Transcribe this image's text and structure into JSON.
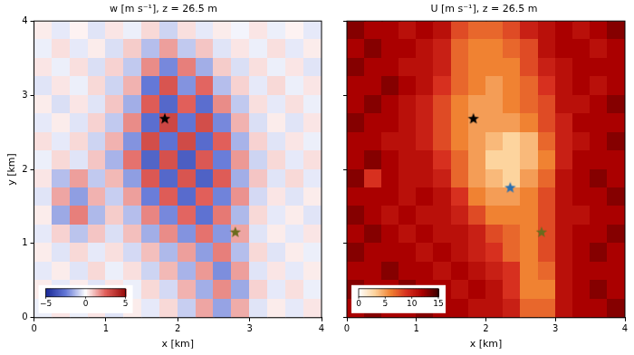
{
  "chart_data": [
    {
      "type": "heatmap",
      "title": "w [m s⁻¹], z = 26.5 m",
      "xlabel": "x [km]",
      "ylabel": "y [km]",
      "xlim": [
        0,
        4
      ],
      "ylim": [
        0,
        4
      ],
      "xticks": [
        0,
        1,
        2,
        3,
        4
      ],
      "yticks": [
        0,
        1,
        2,
        3,
        4
      ],
      "grid": false,
      "colorbar": {
        "range": [
          -5,
          5
        ],
        "ticks": [
          {
            "value": -5,
            "label": "−5"
          },
          0,
          5
        ]
      },
      "cells": [
        [
          0.3,
          -0.4,
          0.2,
          -0.5,
          0.4,
          -0.3,
          0.6,
          -0.8,
          0.5,
          -0.4,
          0.3,
          -0.2,
          0.4,
          -0.3,
          0.2,
          -0.4
        ],
        [
          -0.3,
          0.5,
          -0.4,
          0.3,
          -0.6,
          0.8,
          -1.2,
          1.5,
          -1.0,
          0.9,
          -0.5,
          0.4,
          -0.3,
          0.5,
          -0.4,
          0.3
        ],
        [
          0.4,
          -0.3,
          0.5,
          -0.6,
          0.7,
          -1.0,
          1.8,
          -2.2,
          2.0,
          -1.5,
          0.8,
          -0.6,
          0.5,
          -0.3,
          0.4,
          -0.5
        ],
        [
          -0.5,
          0.4,
          -0.3,
          0.6,
          -0.8,
          1.2,
          -2.5,
          2.8,
          -2.0,
          2.4,
          -1.2,
          0.7,
          -0.4,
          0.6,
          -0.3,
          0.4
        ],
        [
          0.3,
          -0.6,
          0.4,
          -0.5,
          0.9,
          -1.5,
          2.6,
          -3.0,
          2.5,
          -2.8,
          1.8,
          -1.0,
          0.5,
          -0.4,
          0.5,
          -0.3
        ],
        [
          -0.4,
          0.3,
          -0.5,
          0.7,
          -1.0,
          1.8,
          -2.8,
          3.2,
          -2.6,
          3.0,
          -2.2,
          1.2,
          -0.6,
          0.3,
          -0.5,
          0.4
        ],
        [
          0.5,
          -0.4,
          0.6,
          -0.8,
          1.2,
          -2.0,
          3.0,
          -2.7,
          3.1,
          -2.9,
          2.5,
          -1.4,
          0.7,
          -0.5,
          0.4,
          -0.3
        ],
        [
          -0.3,
          0.6,
          -0.5,
          0.9,
          -1.4,
          2.2,
          -3.1,
          2.9,
          -3.3,
          2.7,
          -2.4,
          1.6,
          -0.8,
          0.6,
          -0.4,
          0.5
        ],
        [
          0.4,
          -1.2,
          1.5,
          -1.0,
          1.1,
          -1.8,
          2.7,
          -3.0,
          2.8,
          -3.2,
          2.6,
          -1.5,
          0.9,
          -0.5,
          0.6,
          -0.4
        ],
        [
          -0.5,
          1.4,
          -1.8,
          1.2,
          -0.9,
          1.5,
          -2.4,
          2.6,
          -2.9,
          2.5,
          -2.3,
          1.7,
          -0.7,
          0.4,
          -0.5,
          0.3
        ],
        [
          0.3,
          -1.6,
          2.0,
          -1.3,
          0.8,
          -1.2,
          1.9,
          -2.2,
          2.4,
          -2.7,
          2.1,
          -1.3,
          0.6,
          -0.4,
          0.3,
          -0.5
        ],
        [
          -0.4,
          0.7,
          -1.1,
          0.9,
          -0.6,
          1.0,
          -1.5,
          1.8,
          -2.0,
          2.2,
          -1.9,
          1.4,
          -0.5,
          0.3,
          -0.4,
          0.4
        ],
        [
          0.3,
          -0.5,
          0.6,
          -0.4,
          0.5,
          -0.7,
          1.0,
          -1.3,
          1.5,
          -1.8,
          2.0,
          -1.2,
          0.6,
          -0.5,
          0.3,
          -0.3
        ],
        [
          -0.4,
          0.3,
          -0.5,
          0.6,
          -0.3,
          0.5,
          -0.8,
          1.1,
          -1.4,
          1.6,
          -2.1,
          1.5,
          -0.5,
          0.4,
          -0.4,
          0.3
        ],
        [
          0.3,
          -0.4,
          0.3,
          -0.5,
          0.4,
          -0.3,
          0.6,
          -0.7,
          1.2,
          -1.5,
          1.8,
          -1.6,
          0.7,
          -0.4,
          0.5,
          -0.3
        ],
        [
          -0.3,
          0.4,
          -0.3,
          0.4,
          -0.5,
          0.3,
          -0.4,
          0.6,
          -0.9,
          1.4,
          -1.7,
          1.3,
          -0.5,
          0.3,
          -0.4,
          0.4
        ]
      ],
      "series": [
        {
          "type": "scatter",
          "marker": "star",
          "color": "#000000",
          "x": [
            1.82
          ],
          "y": [
            2.68
          ]
        },
        {
          "type": "scatter",
          "marker": "star",
          "color": "#6b6b1e",
          "x": [
            2.8
          ],
          "y": [
            1.15
          ]
        }
      ]
    },
    {
      "type": "heatmap",
      "title": "U [m s⁻¹], z = 26.5 m",
      "xlabel": "x [km]",
      "xlim": [
        0,
        4
      ],
      "ylim": [
        0,
        4
      ],
      "xticks": [
        0,
        1,
        2,
        3,
        4
      ],
      "yticks": [
        0,
        1,
        2,
        3,
        4
      ],
      "grid": false,
      "tick_labels": "x",
      "colorbar": {
        "range": [
          0,
          15
        ],
        "ticks": [
          0,
          5,
          10,
          15
        ]
      },
      "cells": [
        [
          13,
          12,
          12,
          11,
          12,
          11,
          8,
          7,
          7,
          8,
          10,
          11,
          12,
          11,
          12,
          13
        ],
        [
          12,
          13,
          12,
          12,
          11,
          10,
          7,
          6,
          6,
          7,
          8,
          11,
          12,
          12,
          11,
          12
        ],
        [
          13,
          12,
          12,
          11,
          11,
          10,
          7,
          6,
          6,
          6,
          8,
          10,
          11,
          12,
          12,
          12
        ],
        [
          12,
          12,
          13,
          12,
          11,
          9,
          7,
          6,
          5,
          6,
          7,
          9,
          11,
          12,
          11,
          12
        ],
        [
          12,
          13,
          12,
          11,
          10,
          8,
          6,
          5,
          5,
          6,
          7,
          8,
          11,
          11,
          12,
          13
        ],
        [
          13,
          12,
          12,
          11,
          10,
          8,
          6,
          5,
          5,
          5,
          6,
          8,
          10,
          12,
          12,
          12
        ],
        [
          12,
          12,
          11,
          11,
          10,
          8,
          6,
          5,
          4,
          3,
          4,
          7,
          10,
          11,
          12,
          13
        ],
        [
          12,
          13,
          12,
          11,
          11,
          9,
          7,
          5,
          3,
          3,
          4,
          6,
          10,
          12,
          12,
          12
        ],
        [
          13,
          9,
          12,
          11,
          11,
          10,
          7,
          5,
          4,
          3,
          5,
          7,
          11,
          12,
          13,
          12
        ],
        [
          12,
          12,
          12,
          11,
          12,
          11,
          9,
          6,
          5,
          5,
          6,
          8,
          11,
          12,
          12,
          13
        ],
        [
          13,
          12,
          11,
          12,
          11,
          11,
          10,
          8,
          6,
          6,
          6,
          8,
          11,
          11,
          12,
          12
        ],
        [
          12,
          13,
          12,
          11,
          12,
          11,
          11,
          10,
          8,
          7,
          6,
          8,
          11,
          12,
          12,
          13
        ],
        [
          13,
          12,
          12,
          12,
          11,
          12,
          11,
          10,
          9,
          7,
          6,
          8,
          11,
          12,
          13,
          12
        ],
        [
          12,
          12,
          13,
          12,
          12,
          11,
          12,
          11,
          10,
          9,
          6,
          7,
          11,
          12,
          12,
          12
        ],
        [
          13,
          12,
          12,
          13,
          12,
          12,
          11,
          12,
          11,
          9,
          6,
          6,
          11,
          12,
          13,
          12
        ],
        [
          12,
          13,
          12,
          12,
          13,
          12,
          12,
          11,
          11,
          10,
          7,
          7,
          11,
          12,
          12,
          13
        ]
      ],
      "series": [
        {
          "type": "scatter",
          "marker": "star",
          "color": "#000000",
          "x": [
            1.82
          ],
          "y": [
            2.68
          ]
        },
        {
          "type": "scatter",
          "marker": "star",
          "color": "#2a6fb0",
          "x": [
            2.35
          ],
          "y": [
            1.75
          ]
        },
        {
          "type": "scatter",
          "marker": "star",
          "color": "#6b6b1e",
          "x": [
            2.8
          ],
          "y": [
            1.15
          ]
        }
      ]
    }
  ]
}
